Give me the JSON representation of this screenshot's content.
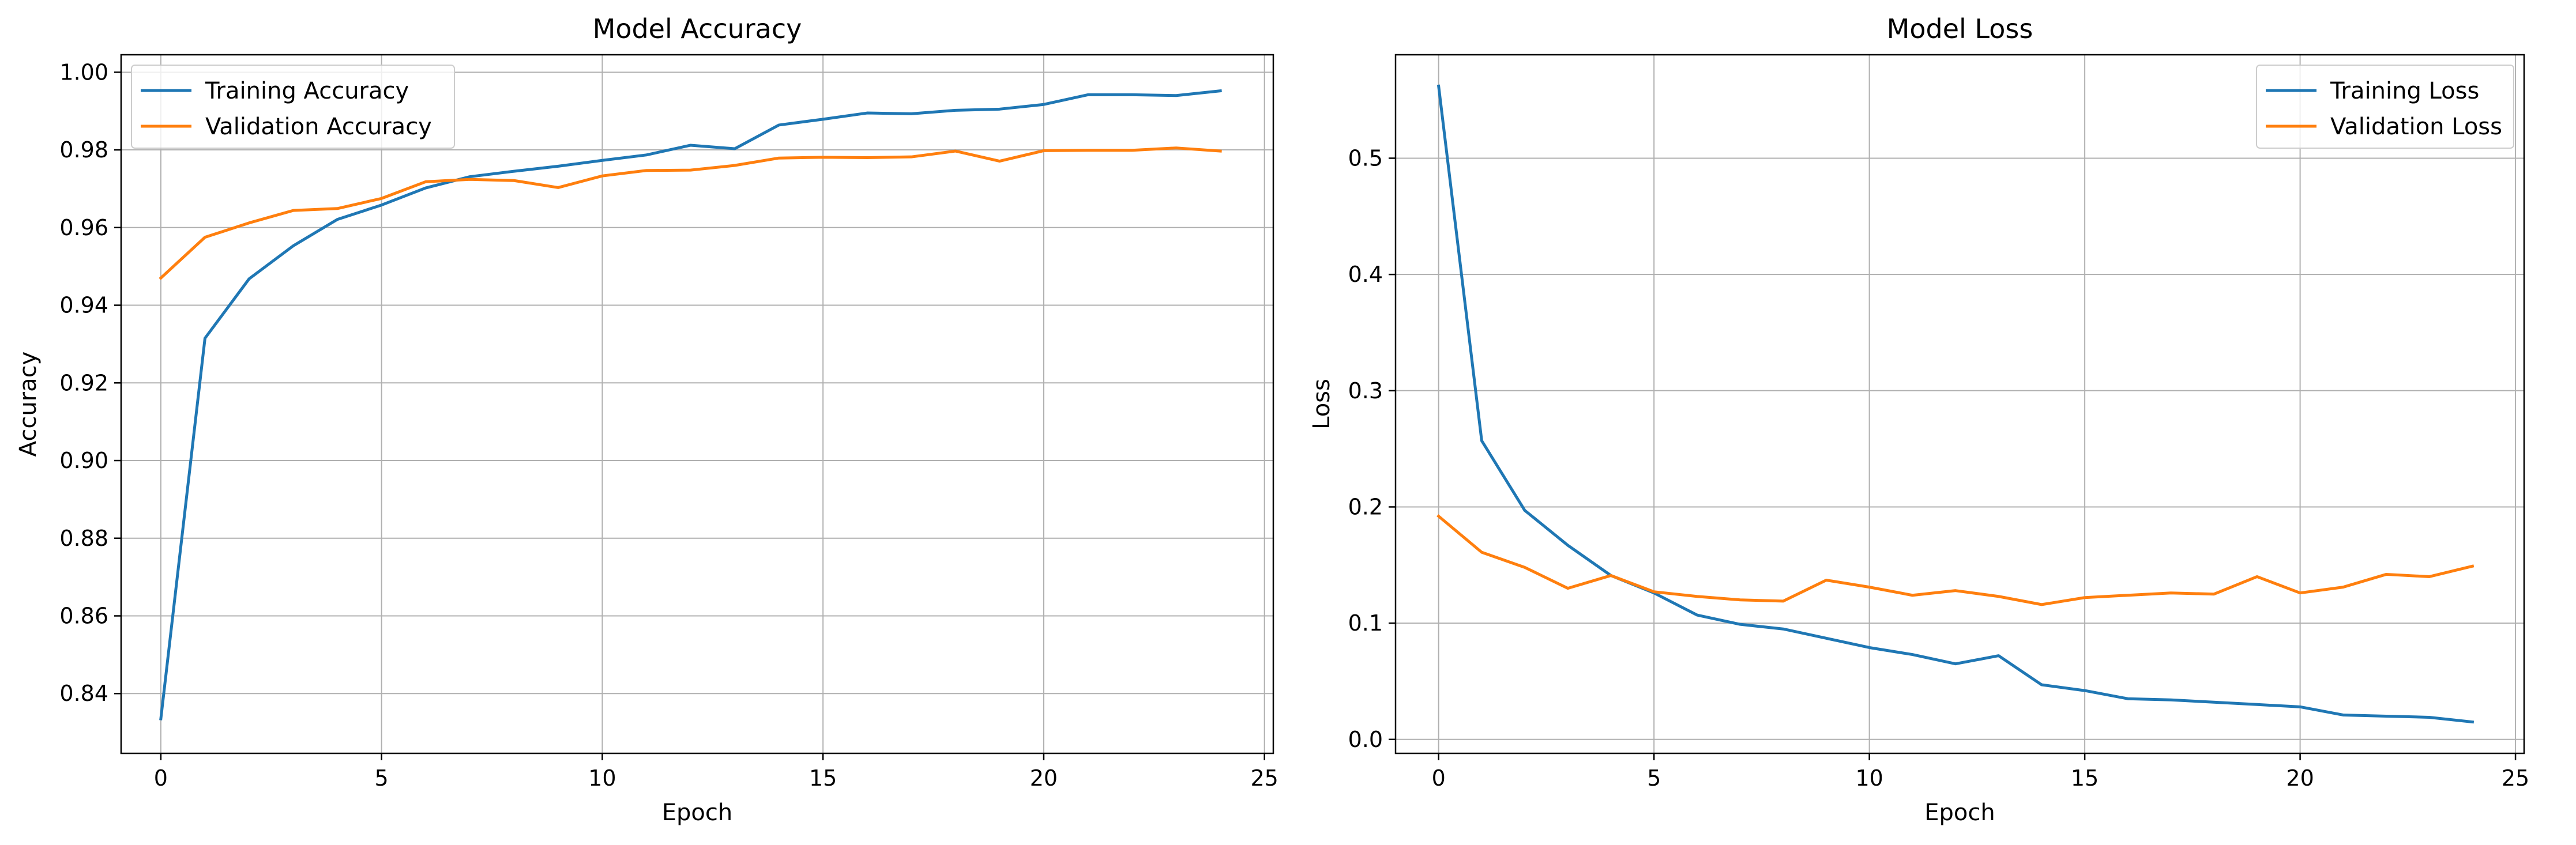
{
  "colors": {
    "training": "#1f77b4",
    "validation": "#ff7f0e",
    "grid": "#b0b0b0",
    "background": "#ffffff"
  },
  "chart_data": [
    {
      "type": "line",
      "title": "Model Accuracy",
      "xlabel": "Epoch",
      "ylabel": "Accuracy",
      "xlim": [
        -0.9,
        25.2
      ],
      "ylim": [
        0.8246,
        1.0045
      ],
      "xticks": [
        0,
        5,
        10,
        15,
        20,
        25
      ],
      "yticks": [
        0.84,
        0.86,
        0.88,
        0.9,
        0.92,
        0.94,
        0.96,
        0.98,
        1.0
      ],
      "ytick_labels": [
        "0.84",
        "0.86",
        "0.88",
        "0.90",
        "0.92",
        "0.94",
        "0.96",
        "0.98",
        "1.00"
      ],
      "xtick_labels": [
        "0",
        "5",
        "10",
        "15",
        "20",
        "25"
      ],
      "grid": true,
      "legend_position": "upper-left",
      "x": [
        0,
        1,
        2,
        3,
        4,
        5,
        6,
        7,
        8,
        9,
        10,
        11,
        12,
        13,
        14,
        15,
        16,
        17,
        18,
        19,
        20,
        21,
        22,
        23,
        24
      ],
      "series": [
        {
          "name": "Training Accuracy",
          "color": "#1f77b4",
          "values": [
            0.8335,
            0.9315,
            0.9468,
            0.9553,
            0.9621,
            0.9658,
            0.9702,
            0.9731,
            0.9745,
            0.9758,
            0.9773,
            0.9787,
            0.9812,
            0.9803,
            0.9864,
            0.9879,
            0.9895,
            0.9893,
            0.9902,
            0.9905,
            0.9917,
            0.9942,
            0.9942,
            0.994,
            0.9952
          ]
        },
        {
          "name": "Validation Accuracy",
          "color": "#ff7f0e",
          "values": [
            0.947,
            0.9575,
            0.9612,
            0.9644,
            0.9649,
            0.9675,
            0.9718,
            0.9724,
            0.9721,
            0.9703,
            0.9733,
            0.9747,
            0.9748,
            0.976,
            0.9779,
            0.9781,
            0.978,
            0.9782,
            0.9797,
            0.9771,
            0.9798,
            0.9799,
            0.9799,
            0.9805,
            0.9797
          ]
        }
      ]
    },
    {
      "type": "line",
      "title": "Model Loss",
      "xlabel": "Epoch",
      "ylabel": "Loss",
      "xlim": [
        -1.0,
        25.2
      ],
      "ylim": [
        -0.012,
        0.589
      ],
      "xticks": [
        0,
        5,
        10,
        15,
        20,
        25
      ],
      "yticks": [
        0.0,
        0.1,
        0.2,
        0.3,
        0.4,
        0.5
      ],
      "ytick_labels": [
        "0.0",
        "0.1",
        "0.2",
        "0.3",
        "0.4",
        "0.5"
      ],
      "xtick_labels": [
        "0",
        "5",
        "10",
        "15",
        "20",
        "25"
      ],
      "grid": true,
      "legend_position": "upper-right",
      "x": [
        0,
        1,
        2,
        3,
        4,
        5,
        6,
        7,
        8,
        9,
        10,
        11,
        12,
        13,
        14,
        15,
        16,
        17,
        18,
        19,
        20,
        21,
        22,
        23,
        24
      ],
      "series": [
        {
          "name": "Training Loss",
          "color": "#1f77b4",
          "values": [
            0.562,
            0.257,
            0.197,
            0.167,
            0.141,
            0.126,
            0.107,
            0.099,
            0.095,
            0.087,
            0.079,
            0.073,
            0.065,
            0.072,
            0.047,
            0.042,
            0.035,
            0.034,
            0.032,
            0.03,
            0.028,
            0.021,
            0.02,
            0.019,
            0.015
          ]
        },
        {
          "name": "Validation Loss",
          "color": "#ff7f0e",
          "values": [
            0.192,
            0.161,
            0.148,
            0.13,
            0.141,
            0.127,
            0.123,
            0.12,
            0.119,
            0.137,
            0.131,
            0.124,
            0.128,
            0.123,
            0.116,
            0.122,
            0.124,
            0.126,
            0.125,
            0.14,
            0.126,
            0.131,
            0.142,
            0.14,
            0.149
          ]
        }
      ]
    }
  ]
}
